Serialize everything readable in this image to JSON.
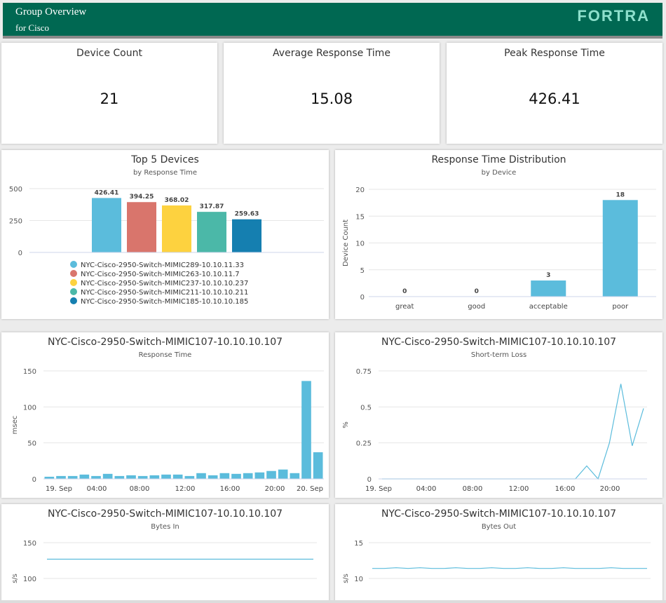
{
  "header": {
    "title": "Group Overview",
    "subtitle": "for Cisco",
    "logo": "FORTRA"
  },
  "kpis": [
    {
      "title": "Device Count",
      "value": "21"
    },
    {
      "title": "Average Response Time",
      "value": "15.08"
    },
    {
      "title": "Peak Response Time",
      "value": "426.41"
    }
  ],
  "top5": {
    "title": "Top 5 Devices",
    "subtitle": "by Response Time",
    "chart_data": {
      "type": "bar",
      "title": "Top 5 Devices",
      "subtitle": "by Response Time",
      "ylim": [
        0,
        500
      ],
      "yticks": [
        0,
        250,
        500
      ],
      "grid": true,
      "legend": "bottom",
      "series": [
        {
          "name": "NYC-Cisco-2950-Switch-MIMIC289-10.10.11.33",
          "value": 426.41,
          "label": "426.41",
          "color": "#5bbcdc"
        },
        {
          "name": "NYC-Cisco-2950-Switch-MIMIC263-10.10.11.7",
          "value": 394.25,
          "label": "394.25",
          "color": "#d9756c"
        },
        {
          "name": "NYC-Cisco-2950-Switch-MIMIC237-10.10.10.237",
          "value": 368.02,
          "label": "368.02",
          "color": "#fdd23f"
        },
        {
          "name": "NYC-Cisco-2950-Switch-MIMIC211-10.10.10.211",
          "value": 317.87,
          "label": "317.87",
          "color": "#4bb8a8"
        },
        {
          "name": "NYC-Cisco-2950-Switch-MIMIC185-10.10.10.185",
          "value": 259.63,
          "label": "259.63",
          "color": "#157fb0"
        }
      ]
    }
  },
  "distribution": {
    "title": "Response Time Distribution",
    "subtitle": "by Device",
    "chart_data": {
      "type": "bar",
      "title": "Response Time Distribution",
      "subtitle": "by Device",
      "ylabel": "Device Count",
      "ylim": [
        0,
        20
      ],
      "yticks": [
        0,
        5,
        10,
        15,
        20
      ],
      "grid": true,
      "categories": [
        "great",
        "good",
        "acceptable",
        "poor"
      ],
      "values": [
        0,
        0,
        3,
        18
      ],
      "labels": [
        "0",
        "0",
        "3",
        "18"
      ],
      "color": "#5bbcdc"
    }
  },
  "response_time": {
    "title": "NYC-Cisco-2950-Switch-MIMIC107-10.10.10.107",
    "subtitle": "Response Time",
    "chart_data": {
      "type": "bar",
      "ylabel": "msec",
      "ylim": [
        0,
        150
      ],
      "yticks": [
        0,
        50,
        100,
        150
      ],
      "xticks": [
        "19. Sep",
        "04:00",
        "08:00",
        "12:00",
        "16:00",
        "20:00",
        "20. Sep"
      ],
      "grid": true,
      "values": [
        3,
        4,
        4,
        6,
        4,
        7,
        4,
        5,
        4,
        5,
        6,
        6,
        4,
        8,
        5,
        8,
        7,
        8,
        9,
        11,
        13,
        8,
        136,
        37
      ],
      "color": "#5bbcdc"
    }
  },
  "short_term_loss": {
    "title": "NYC-Cisco-2950-Switch-MIMIC107-10.10.10.107",
    "subtitle": "Short-term Loss",
    "chart_data": {
      "type": "line",
      "ylabel": "%",
      "ylim": [
        0,
        0.75
      ],
      "yticks": [
        "0",
        "0.25",
        "0.5",
        "0.75"
      ],
      "xticks": [
        "19. Sep",
        "04:00",
        "08:00",
        "12:00",
        "16:00",
        "20:00"
      ],
      "grid": true,
      "values": [
        0,
        0,
        0,
        0,
        0,
        0,
        0,
        0,
        0,
        0,
        0,
        0,
        0,
        0,
        0,
        0,
        0,
        0,
        0.09,
        0,
        0.25,
        0.66,
        0.23,
        0.49
      ],
      "color": "#5bbcdc"
    }
  },
  "bytes_in": {
    "title": "NYC-Cisco-2950-Switch-MIMIC107-10.10.10.107",
    "subtitle": "Bytes In",
    "chart_data": {
      "type": "line",
      "ylabel": "s/s",
      "ylim": [
        50,
        150
      ],
      "yticks": [
        "100",
        "150"
      ],
      "grid": true,
      "values": [
        127,
        127,
        127,
        127,
        127,
        127,
        127,
        127,
        127,
        127,
        127,
        127,
        127,
        127,
        127,
        127,
        127,
        127,
        127,
        127,
        127,
        127,
        127,
        127
      ],
      "color": "#5bbcdc"
    }
  },
  "bytes_out": {
    "title": "NYC-Cisco-2950-Switch-MIMIC107-10.10.10.107",
    "subtitle": "Bytes Out",
    "chart_data": {
      "type": "line",
      "ylabel": "s/s",
      "ylim": [
        5,
        15
      ],
      "yticks": [
        "10",
        "15"
      ],
      "grid": true,
      "values": [
        11.4,
        11.4,
        11.5,
        11.4,
        11.5,
        11.4,
        11.4,
        11.5,
        11.4,
        11.4,
        11.5,
        11.4,
        11.4,
        11.5,
        11.4,
        11.4,
        11.5,
        11.4,
        11.4,
        11.4,
        11.5,
        11.4,
        11.4,
        11.4
      ],
      "color": "#5bbcdc"
    }
  }
}
